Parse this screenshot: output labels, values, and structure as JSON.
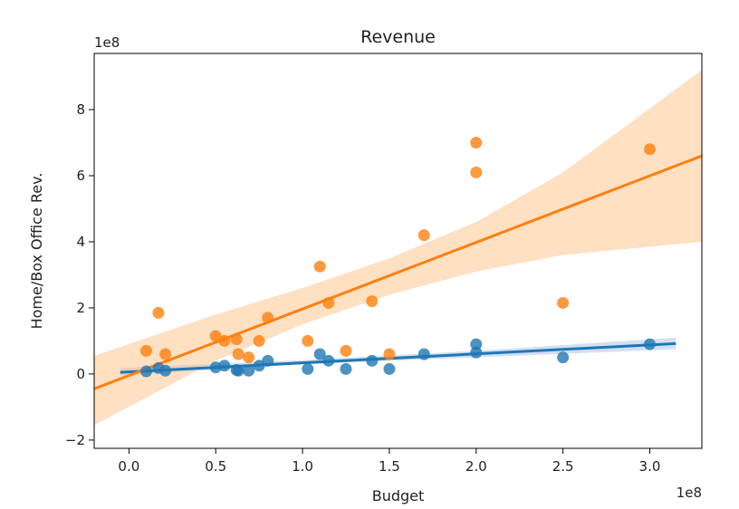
{
  "chart_data": {
    "type": "scatter",
    "title": "Revenue",
    "xlabel": "Budget",
    "ylabel": "Home/Box Office Rev.",
    "x_offset_label": "1e8",
    "y_offset_label": "1e8",
    "xlim": [
      -0.2,
      3.3
    ],
    "ylim": [
      -2.25,
      9.7
    ],
    "x_ticks": [
      0.0,
      0.5,
      1.0,
      1.5,
      2.0,
      2.5,
      3.0
    ],
    "x_tick_labels": [
      "0.0",
      "0.5",
      "1.0",
      "1.5",
      "2.0",
      "2.5",
      "3.0"
    ],
    "y_ticks": [
      -2,
      0,
      2,
      4,
      6,
      8
    ],
    "y_tick_labels": [
      "−2",
      "0",
      "2",
      "4",
      "6",
      "8"
    ],
    "grid": false,
    "legend": "none",
    "series": [
      {
        "color": "#1f77b4",
        "band_color": "#aec7e8",
        "points": [
          [
            0.1,
            0.08
          ],
          [
            0.17,
            0.18
          ],
          [
            0.21,
            0.1
          ],
          [
            0.5,
            0.2
          ],
          [
            0.55,
            0.25
          ],
          [
            0.62,
            0.12
          ],
          [
            0.63,
            0.1
          ],
          [
            0.69,
            0.1
          ],
          [
            0.75,
            0.25
          ],
          [
            0.8,
            0.4
          ],
          [
            1.03,
            0.15
          ],
          [
            1.1,
            0.6
          ],
          [
            1.15,
            0.4
          ],
          [
            1.25,
            0.15
          ],
          [
            1.4,
            0.4
          ],
          [
            1.5,
            0.15
          ],
          [
            1.7,
            0.6
          ],
          [
            2.0,
            0.9
          ],
          [
            2.0,
            0.65
          ],
          [
            2.5,
            0.5
          ],
          [
            3.0,
            0.9
          ]
        ],
        "fit": {
          "x": [
            -0.05,
            3.15
          ],
          "y": [
            0.05,
            0.92
          ]
        },
        "band": {
          "x": [
            -0.05,
            1.0,
            2.0,
            3.15
          ],
          "lower": [
            -0.05,
            0.3,
            0.5,
            0.75
          ],
          "upper": [
            0.18,
            0.42,
            0.7,
            1.1
          ]
        }
      },
      {
        "color": "#ff7f0e",
        "band_color": "#ffbb78",
        "points": [
          [
            0.1,
            0.7
          ],
          [
            0.17,
            1.85
          ],
          [
            0.21,
            0.6
          ],
          [
            0.5,
            1.15
          ],
          [
            0.55,
            1.0
          ],
          [
            0.62,
            1.05
          ],
          [
            0.63,
            0.6
          ],
          [
            0.69,
            0.5
          ],
          [
            0.75,
            1.0
          ],
          [
            0.8,
            1.7
          ],
          [
            1.03,
            1.0
          ],
          [
            1.1,
            3.25
          ],
          [
            1.15,
            2.15
          ],
          [
            1.25,
            0.7
          ],
          [
            1.4,
            2.2
          ],
          [
            1.5,
            0.6
          ],
          [
            1.7,
            4.2
          ],
          [
            2.0,
            7.0
          ],
          [
            2.0,
            6.1
          ],
          [
            2.5,
            2.15
          ],
          [
            3.0,
            6.8
          ]
        ],
        "fit": {
          "x": [
            -0.2,
            3.3
          ],
          "y": [
            -0.45,
            6.6
          ]
        },
        "band": {
          "x": [
            -0.2,
            0.5,
            1.0,
            1.5,
            2.0,
            2.5,
            3.3
          ],
          "lower": [
            -1.55,
            0.4,
            1.5,
            2.4,
            3.1,
            3.6,
            4.0
          ],
          "upper": [
            0.55,
            1.8,
            2.6,
            3.5,
            4.6,
            6.1,
            9.2
          ]
        }
      }
    ]
  }
}
